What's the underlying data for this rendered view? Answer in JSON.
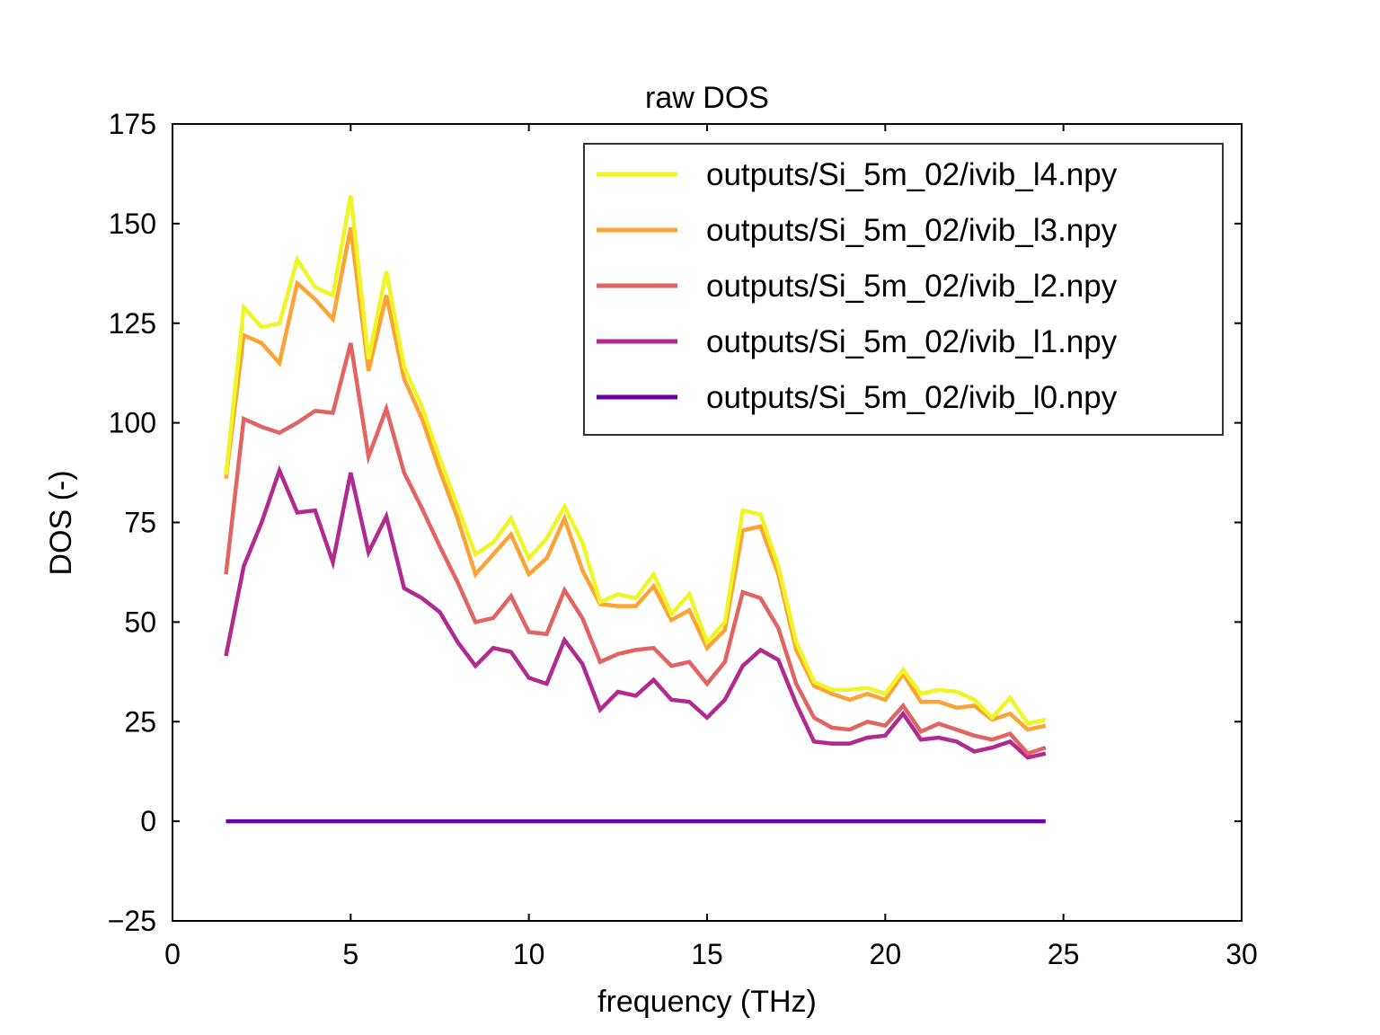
{
  "chart_data": {
    "type": "line",
    "title": "raw DOS",
    "xlabel": "frequency (THz)",
    "ylabel": "DOS (-)",
    "xlim": [
      0,
      30
    ],
    "ylim": [
      -25,
      175
    ],
    "xticks": [
      0,
      5,
      10,
      15,
      20,
      25,
      30
    ],
    "yticks": [
      -25,
      0,
      25,
      50,
      75,
      100,
      125,
      150,
      175
    ],
    "ytick_labels": [
      "−25",
      "0",
      "25",
      "50",
      "75",
      "100",
      "125",
      "150",
      "175"
    ],
    "grid": false,
    "legend_position": "top-right",
    "x": [
      1.5,
      2,
      2.5,
      3,
      3.5,
      4,
      4.5,
      5,
      5.5,
      6,
      6.5,
      7,
      7.5,
      8,
      8.5,
      9,
      9.5,
      10,
      10.5,
      11,
      11.5,
      12,
      12.5,
      13,
      13.5,
      14,
      14.5,
      15,
      15.5,
      16,
      16.5,
      17,
      17.5,
      18,
      18.5,
      19,
      19.5,
      20,
      20.5,
      21,
      21.5,
      22,
      22.5,
      23,
      23.5,
      24,
      24.5
    ],
    "series": [
      {
        "name": "outputs/Si_5m_02/ivib_l4.npy",
        "color": "#eef724",
        "values": [
          87,
          129,
          124,
          125,
          141,
          134,
          132,
          157,
          116,
          138,
          114,
          104,
          91,
          79,
          67,
          70,
          76,
          66,
          71,
          79,
          70,
          55,
          57,
          56,
          62,
          52,
          57,
          45,
          50,
          78,
          77,
          64,
          45,
          35,
          33,
          33,
          33.5,
          32,
          38,
          32,
          33,
          32.5,
          30.5,
          26,
          31,
          24.5,
          25.5
        ]
      },
      {
        "name": "outputs/Si_5m_02/ivib_l3.npy",
        "color": "#fca338",
        "values": [
          86,
          122,
          120,
          115,
          135,
          131,
          126,
          149,
          113,
          132,
          111,
          101,
          88,
          76,
          62,
          67,
          72,
          62,
          66,
          76,
          63,
          54.5,
          54,
          54,
          59,
          50.5,
          53,
          43.5,
          48,
          73,
          74,
          62,
          43,
          34,
          32,
          30.5,
          32,
          30.5,
          37,
          30,
          30,
          28.5,
          29,
          25.5,
          27,
          23,
          24
        ]
      },
      {
        "name": "outputs/Si_5m_02/ivib_l2.npy",
        "color": "#e16462",
        "values": [
          62,
          101,
          99,
          97.5,
          100,
          103,
          102.5,
          120,
          91.5,
          103.5,
          87.5,
          78.5,
          69,
          60,
          50,
          51,
          56.5,
          47.5,
          47,
          58,
          51,
          40,
          42,
          43,
          43.5,
          39,
          40,
          34.5,
          40,
          57.5,
          56,
          48.5,
          34.5,
          26,
          23.5,
          23,
          25,
          24,
          29,
          22.5,
          24.5,
          23,
          21.5,
          20.5,
          22,
          17,
          18.5
        ]
      },
      {
        "name": "outputs/Si_5m_02/ivib_l1.npy",
        "color": "#b12a90",
        "values": [
          41.5,
          64,
          75,
          88,
          77.5,
          78,
          65,
          87.5,
          67.5,
          76.5,
          58.5,
          56,
          52.5,
          45,
          39,
          43.5,
          42.5,
          36,
          34.5,
          45.5,
          39.5,
          28,
          32.5,
          31.5,
          35.5,
          30.5,
          30,
          26,
          30.5,
          39,
          43,
          40.5,
          29.5,
          20,
          19.5,
          19.5,
          21,
          21.5,
          27,
          20.5,
          21,
          20,
          17.5,
          18.5,
          20,
          16,
          17
        ]
      },
      {
        "name": "outputs/Si_5m_02/ivib_l0.npy",
        "color": "#6a00a8",
        "values": [
          0,
          0,
          0,
          0,
          0,
          0,
          0,
          0,
          0,
          0,
          0,
          0,
          0,
          0,
          0,
          0,
          0,
          0,
          0,
          0,
          0,
          0,
          0,
          0,
          0,
          0,
          0,
          0,
          0,
          0,
          0,
          0,
          0,
          0,
          0,
          0,
          0,
          0,
          0,
          0,
          0,
          0,
          0,
          0,
          0,
          0,
          0
        ]
      }
    ]
  }
}
